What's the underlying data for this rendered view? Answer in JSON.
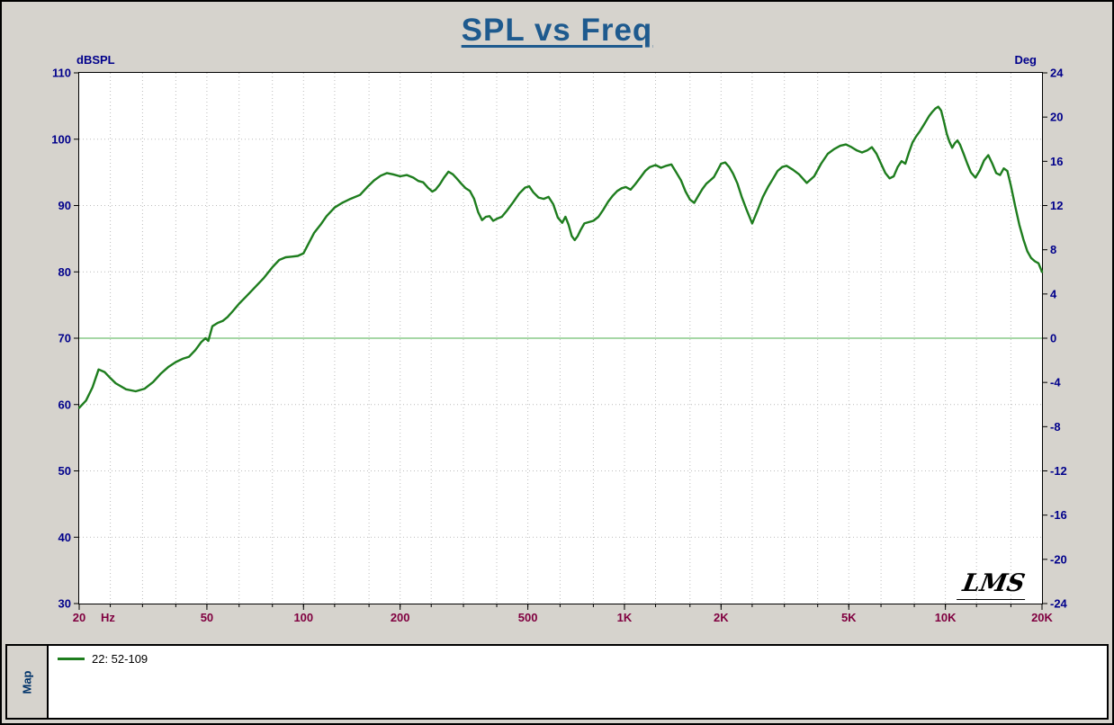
{
  "chart": {
    "title": "SPL vs Freq",
    "logo": "LMS",
    "left_axis": {
      "label": "dBSPL",
      "min": 30,
      "max": 110,
      "ticks": [
        110,
        100,
        90,
        80,
        70,
        60,
        50,
        40,
        30
      ]
    },
    "right_axis": {
      "label": "Deg",
      "min": -24,
      "max": 24,
      "ticks": [
        24,
        20,
        16,
        12,
        8,
        4,
        0,
        -4,
        -8,
        -12,
        -16,
        -20,
        -24
      ]
    },
    "x_axis": {
      "unit": "Hz",
      "tick_labels": [
        "20",
        "50",
        "100",
        "200",
        "500",
        "1K",
        "2K",
        "5K",
        "10K",
        "20K"
      ],
      "tick_freqs": [
        20,
        50,
        100,
        200,
        500,
        1000,
        2000,
        5000,
        10000,
        20000
      ],
      "grid_freqs": [
        25,
        31.5,
        40,
        50,
        63,
        80,
        100,
        125,
        160,
        200,
        250,
        315,
        400,
        500,
        630,
        800,
        1000,
        1250,
        1600,
        2000,
        2500,
        3150,
        4000,
        5000,
        6300,
        8000,
        10000,
        12500,
        16000
      ]
    },
    "colors": {
      "curve": "#1e7d1e",
      "zero_line": "#a6d7a6",
      "grid": "#bcbcbc",
      "title": "#1e5a8e",
      "axis_left_text": "#00008b",
      "axis_right_text": "#00008b",
      "axis_bottom_text": "#800040",
      "background": "#d6d3cd",
      "plot_background": "#ffffff"
    }
  },
  "chart_data": {
    "type": "line",
    "title": "SPL vs Freq",
    "xlabel": "Hz",
    "ylabel_left": "dBSPL",
    "ylabel_right": "Deg",
    "x_scale": "log",
    "xlim": [
      20,
      20000
    ],
    "ylim_left": [
      30,
      110
    ],
    "ylim_right": [
      -24,
      24
    ],
    "grid": true,
    "legend_position": "bottom-panel",
    "reference_line": {
      "value_db": 70,
      "value_deg": 0,
      "color": "#a6d7a6"
    },
    "series": [
      {
        "name": "22: 52-109",
        "color": "#1e7d1e",
        "points": [
          [
            20,
            59.5
          ],
          [
            21,
            60.6
          ],
          [
            22,
            62.6
          ],
          [
            23,
            65.3
          ],
          [
            24,
            64.9
          ],
          [
            25,
            64.0
          ],
          [
            26,
            63.2
          ],
          [
            28,
            62.3
          ],
          [
            30,
            62.0
          ],
          [
            32,
            62.4
          ],
          [
            34,
            63.4
          ],
          [
            36,
            64.7
          ],
          [
            38,
            65.7
          ],
          [
            40,
            66.4
          ],
          [
            42,
            66.9
          ],
          [
            44,
            67.2
          ],
          [
            46,
            68.2
          ],
          [
            48,
            69.4
          ],
          [
            49.5,
            70.0
          ],
          [
            50.5,
            69.6
          ],
          [
            52,
            71.8
          ],
          [
            54,
            72.3
          ],
          [
            56,
            72.6
          ],
          [
            58,
            73.2
          ],
          [
            60,
            74.0
          ],
          [
            63,
            75.2
          ],
          [
            66,
            76.2
          ],
          [
            70,
            77.5
          ],
          [
            75,
            79.0
          ],
          [
            80,
            80.7
          ],
          [
            84,
            81.8
          ],
          [
            88,
            82.2
          ],
          [
            92,
            82.3
          ],
          [
            96,
            82.4
          ],
          [
            100,
            82.8
          ],
          [
            104,
            84.4
          ],
          [
            108,
            85.9
          ],
          [
            113,
            87.1
          ],
          [
            118,
            88.4
          ],
          [
            125,
            89.7
          ],
          [
            132,
            90.4
          ],
          [
            140,
            91.0
          ],
          [
            150,
            91.6
          ],
          [
            158,
            92.8
          ],
          [
            166,
            93.8
          ],
          [
            174,
            94.5
          ],
          [
            182,
            94.9
          ],
          [
            190,
            94.7
          ],
          [
            200,
            94.4
          ],
          [
            210,
            94.6
          ],
          [
            220,
            94.2
          ],
          [
            228,
            93.7
          ],
          [
            236,
            93.5
          ],
          [
            244,
            92.7
          ],
          [
            252,
            92.1
          ],
          [
            258,
            92.4
          ],
          [
            266,
            93.2
          ],
          [
            274,
            94.2
          ],
          [
            283,
            95.1
          ],
          [
            292,
            94.7
          ],
          [
            300,
            94.1
          ],
          [
            310,
            93.3
          ],
          [
            320,
            92.6
          ],
          [
            330,
            92.2
          ],
          [
            340,
            91.0
          ],
          [
            350,
            89.0
          ],
          [
            360,
            87.8
          ],
          [
            370,
            88.3
          ],
          [
            380,
            88.4
          ],
          [
            390,
            87.7
          ],
          [
            400,
            88.0
          ],
          [
            415,
            88.3
          ],
          [
            430,
            89.2
          ],
          [
            450,
            90.5
          ],
          [
            470,
            91.8
          ],
          [
            490,
            92.7
          ],
          [
            505,
            92.9
          ],
          [
            520,
            92.0
          ],
          [
            540,
            91.2
          ],
          [
            560,
            91.0
          ],
          [
            580,
            91.3
          ],
          [
            600,
            90.2
          ],
          [
            620,
            88.2
          ],
          [
            640,
            87.4
          ],
          [
            655,
            88.3
          ],
          [
            670,
            87.1
          ],
          [
            685,
            85.4
          ],
          [
            700,
            84.8
          ],
          [
            715,
            85.4
          ],
          [
            730,
            86.3
          ],
          [
            750,
            87.3
          ],
          [
            775,
            87.5
          ],
          [
            800,
            87.7
          ],
          [
            830,
            88.3
          ],
          [
            860,
            89.4
          ],
          [
            890,
            90.6
          ],
          [
            920,
            91.5
          ],
          [
            950,
            92.2
          ],
          [
            980,
            92.6
          ],
          [
            1010,
            92.8
          ],
          [
            1045,
            92.4
          ],
          [
            1080,
            93.2
          ],
          [
            1120,
            94.2
          ],
          [
            1160,
            95.2
          ],
          [
            1200,
            95.8
          ],
          [
            1250,
            96.1
          ],
          [
            1300,
            95.7
          ],
          [
            1350,
            96.0
          ],
          [
            1400,
            96.2
          ],
          [
            1450,
            95.0
          ],
          [
            1500,
            93.8
          ],
          [
            1550,
            92.1
          ],
          [
            1600,
            90.9
          ],
          [
            1650,
            90.4
          ],
          [
            1700,
            91.5
          ],
          [
            1750,
            92.5
          ],
          [
            1800,
            93.3
          ],
          [
            1850,
            93.8
          ],
          [
            1900,
            94.3
          ],
          [
            1950,
            95.3
          ],
          [
            2000,
            96.3
          ],
          [
            2060,
            96.5
          ],
          [
            2120,
            95.8
          ],
          [
            2180,
            94.8
          ],
          [
            2250,
            93.3
          ],
          [
            2320,
            91.3
          ],
          [
            2400,
            89.4
          ],
          [
            2500,
            87.3
          ],
          [
            2600,
            89.3
          ],
          [
            2700,
            91.3
          ],
          [
            2800,
            92.8
          ],
          [
            2900,
            94.0
          ],
          [
            3000,
            95.2
          ],
          [
            3100,
            95.8
          ],
          [
            3200,
            96.0
          ],
          [
            3350,
            95.4
          ],
          [
            3500,
            94.7
          ],
          [
            3700,
            93.4
          ],
          [
            3900,
            94.4
          ],
          [
            4100,
            96.3
          ],
          [
            4300,
            97.8
          ],
          [
            4500,
            98.5
          ],
          [
            4700,
            99.0
          ],
          [
            4900,
            99.2
          ],
          [
            5100,
            98.8
          ],
          [
            5300,
            98.3
          ],
          [
            5500,
            98.0
          ],
          [
            5700,
            98.3
          ],
          [
            5900,
            98.8
          ],
          [
            6100,
            97.8
          ],
          [
            6300,
            96.3
          ],
          [
            6500,
            94.9
          ],
          [
            6700,
            94.1
          ],
          [
            6900,
            94.4
          ],
          [
            7100,
            95.8
          ],
          [
            7300,
            96.7
          ],
          [
            7500,
            96.3
          ],
          [
            7700,
            98.0
          ],
          [
            7900,
            99.5
          ],
          [
            8100,
            100.4
          ],
          [
            8300,
            101.1
          ],
          [
            8500,
            101.9
          ],
          [
            8700,
            102.7
          ],
          [
            8900,
            103.5
          ],
          [
            9100,
            104.1
          ],
          [
            9300,
            104.6
          ],
          [
            9500,
            104.9
          ],
          [
            9700,
            104.3
          ],
          [
            9900,
            102.6
          ],
          [
            10100,
            100.8
          ],
          [
            10300,
            99.6
          ],
          [
            10500,
            98.7
          ],
          [
            10700,
            99.4
          ],
          [
            10900,
            99.8
          ],
          [
            11100,
            99.2
          ],
          [
            11400,
            97.8
          ],
          [
            11700,
            96.3
          ],
          [
            12000,
            95.0
          ],
          [
            12400,
            94.2
          ],
          [
            12800,
            95.3
          ],
          [
            13200,
            96.8
          ],
          [
            13600,
            97.6
          ],
          [
            14000,
            96.3
          ],
          [
            14400,
            94.9
          ],
          [
            14800,
            94.6
          ],
          [
            15200,
            95.6
          ],
          [
            15600,
            95.2
          ],
          [
            16000,
            93.0
          ],
          [
            16500,
            89.9
          ],
          [
            17000,
            87.1
          ],
          [
            17500,
            84.9
          ],
          [
            18000,
            83.1
          ],
          [
            18500,
            82.1
          ],
          [
            19000,
            81.6
          ],
          [
            19500,
            81.3
          ],
          [
            20000,
            80.0
          ]
        ]
      }
    ]
  },
  "map_panel": {
    "tab_label": "Map",
    "legend": [
      {
        "label": "22: 52-109",
        "color": "#1e7d1e"
      }
    ]
  }
}
